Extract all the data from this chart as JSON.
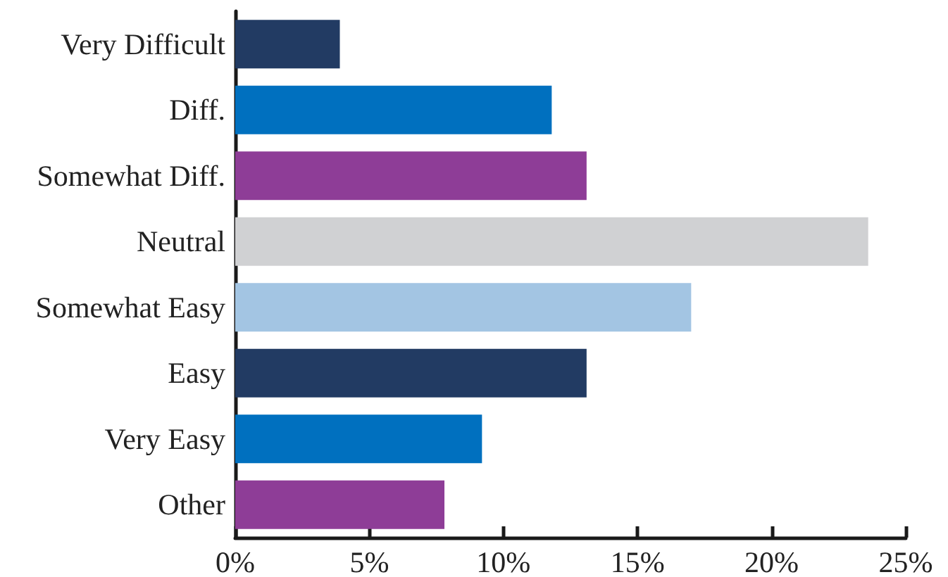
{
  "chart_data": {
    "type": "bar",
    "orientation": "horizontal",
    "categories": [
      "Very Difficult",
      "Diff.",
      "Somewhat Diff.",
      "Neutral",
      "Somewhat Easy",
      "Easy",
      "Very Easy",
      "Other"
    ],
    "values": [
      3.9,
      11.8,
      13.1,
      23.6,
      17.0,
      13.1,
      9.2,
      7.8
    ],
    "colors": [
      "#223b63",
      "#0070bf",
      "#8e3d97",
      "#d0d1d3",
      "#a3c5e3",
      "#223b63",
      "#0070bf",
      "#8e3d97"
    ],
    "xlim": [
      0,
      25
    ],
    "xticks": [
      {
        "value": 0,
        "label": "0%"
      },
      {
        "value": 5,
        "label": "5%"
      },
      {
        "value": 10,
        "label": "10%"
      },
      {
        "value": 15,
        "label": "15%"
      },
      {
        "value": 20,
        "label": "20%"
      },
      {
        "value": 25,
        "label": "25%"
      }
    ],
    "grid": false
  }
}
